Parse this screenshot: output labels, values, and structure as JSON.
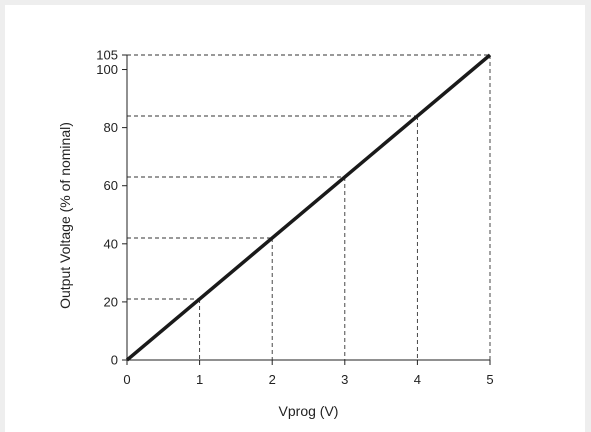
{
  "chart_data": {
    "type": "line",
    "title": "",
    "xlabel": "Vprog (V)",
    "ylabel": "Output Voltage (% of nominal)",
    "xlim": [
      0,
      5
    ],
    "ylim": [
      0,
      105
    ],
    "xticks": [
      0,
      1,
      2,
      3,
      4,
      5
    ],
    "yticks": [
      0,
      20,
      40,
      60,
      80,
      100,
      105
    ],
    "grid": false,
    "series": [
      {
        "x": [
          0,
          5
        ],
        "y": [
          0,
          105
        ],
        "color": "#1a1a1a"
      }
    ],
    "reference_points": [
      {
        "x": 1,
        "y": 21
      },
      {
        "x": 2,
        "y": 42
      },
      {
        "x": 3,
        "y": 63
      },
      {
        "x": 4,
        "y": 84
      },
      {
        "x": 5,
        "y": 105
      }
    ]
  }
}
